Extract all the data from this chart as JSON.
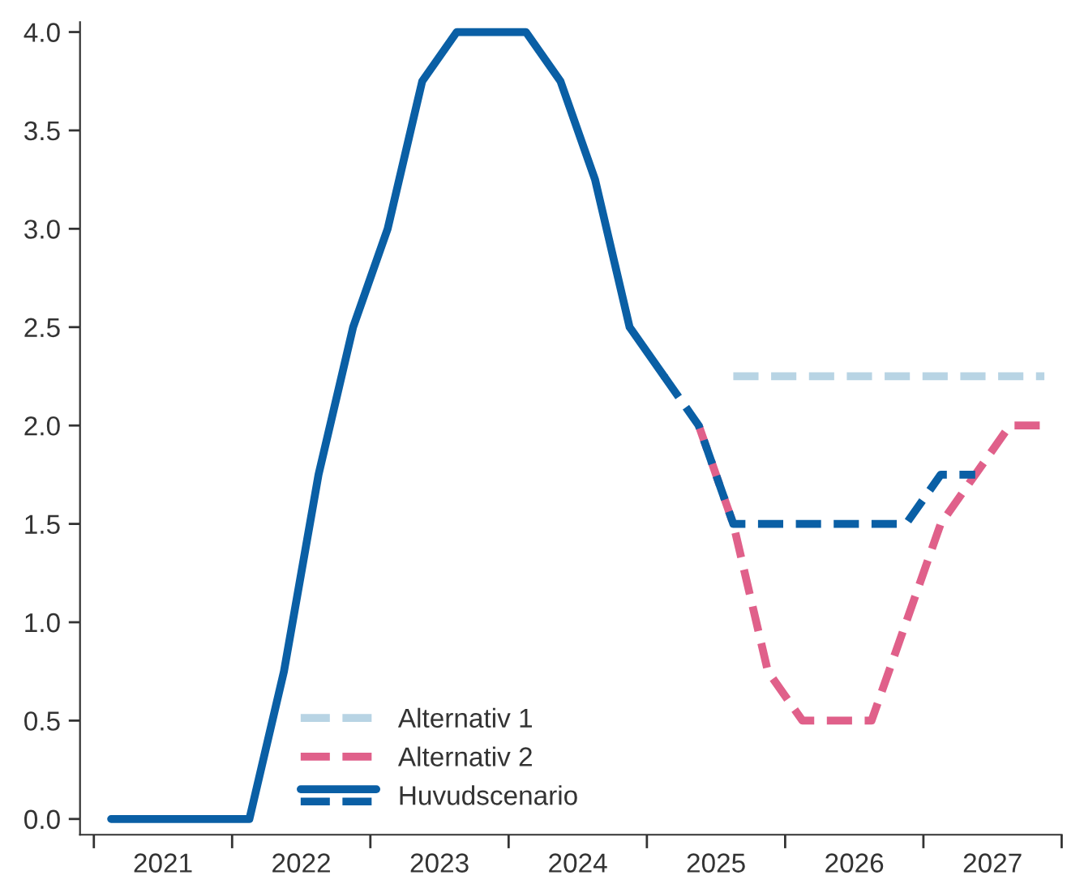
{
  "chart_data": {
    "type": "line",
    "series": [
      {
        "name": "Alternativ 1",
        "color": "#b8d4e4",
        "line_style": "dashed",
        "x": [
          2025.625,
          2025.875,
          2026.125,
          2026.375,
          2026.625,
          2026.875,
          2027.125,
          2027.375,
          2027.625,
          2027.875
        ],
        "values": [
          2.25,
          2.25,
          2.25,
          2.25,
          2.25,
          2.25,
          2.25,
          2.25,
          2.25,
          2.25
        ]
      },
      {
        "name": "Alternativ 2",
        "color": "#e0608a",
        "line_style": "dashed",
        "x": [
          2025.375,
          2025.625,
          2025.875,
          2026.125,
          2026.375,
          2026.625,
          2026.875,
          2027.125,
          2027.375,
          2027.625,
          2027.875
        ],
        "values": [
          2.0,
          1.5,
          0.75,
          0.5,
          0.5,
          0.5,
          1.0,
          1.5,
          1.75,
          2.0,
          2.0
        ]
      },
      {
        "name": "Huvudscenario",
        "color": "#0a5fa5",
        "line_style": "solid",
        "x": [
          2021.125,
          2021.375,
          2021.625,
          2021.875,
          2022.125,
          2022.375,
          2022.625,
          2022.875,
          2023.125,
          2023.375,
          2023.625,
          2023.875,
          2024.125,
          2024.375,
          2024.625,
          2024.875,
          2025.125
        ],
        "values": [
          0,
          0,
          0,
          0,
          0,
          0.75,
          1.75,
          2.5,
          3.0,
          3.75,
          4.0,
          4.0,
          4.0,
          3.75,
          3.25,
          2.5,
          2.25
        ]
      },
      {
        "color": "#0a5fa5",
        "line_style": "dashed",
        "x": [
          2025.125,
          2025.375,
          2025.625,
          2025.875,
          2026.125,
          2026.375,
          2026.625,
          2026.875,
          2027.125,
          2027.375
        ],
        "values": [
          2.25,
          2.0,
          1.5,
          1.5,
          1.5,
          1.5,
          1.5,
          1.5,
          1.75,
          1.75
        ]
      }
    ],
    "xlim": [
      2020.9,
      2028.0
    ],
    "xticks": [
      {
        "value": 2021,
        "label": null
      },
      {
        "value": 2021.5,
        "label": "2021"
      },
      {
        "value": 2022,
        "label": null
      },
      {
        "value": 2022.5,
        "label": "2022"
      },
      {
        "value": 2023,
        "label": null
      },
      {
        "value": 2023.5,
        "label": "2023"
      },
      {
        "value": 2024,
        "label": null
      },
      {
        "value": 2024.5,
        "label": "2024"
      },
      {
        "value": 2025,
        "label": null
      },
      {
        "value": 2025.5,
        "label": "2025"
      },
      {
        "value": 2026,
        "label": null
      },
      {
        "value": 2026.5,
        "label": "2026"
      },
      {
        "value": 2027,
        "label": null
      },
      {
        "value": 2027.5,
        "label": "2027"
      },
      {
        "value": 2028,
        "label": null
      }
    ],
    "ylim": [
      -0.08,
      4.05
    ],
    "yticks": [
      {
        "value": 0,
        "label": "0.0"
      },
      {
        "value": 0.5,
        "label": "0.5"
      },
      {
        "value": 1,
        "label": "1.0"
      },
      {
        "value": 1.5,
        "label": "1.5"
      },
      {
        "value": 2,
        "label": "2.0"
      },
      {
        "value": 2.5,
        "label": "2.5"
      },
      {
        "value": 3,
        "label": "3.0"
      },
      {
        "value": 3.5,
        "label": "3.5"
      },
      {
        "value": 4,
        "label": "4.0"
      }
    ],
    "grid": false,
    "legend": "bottom left"
  }
}
